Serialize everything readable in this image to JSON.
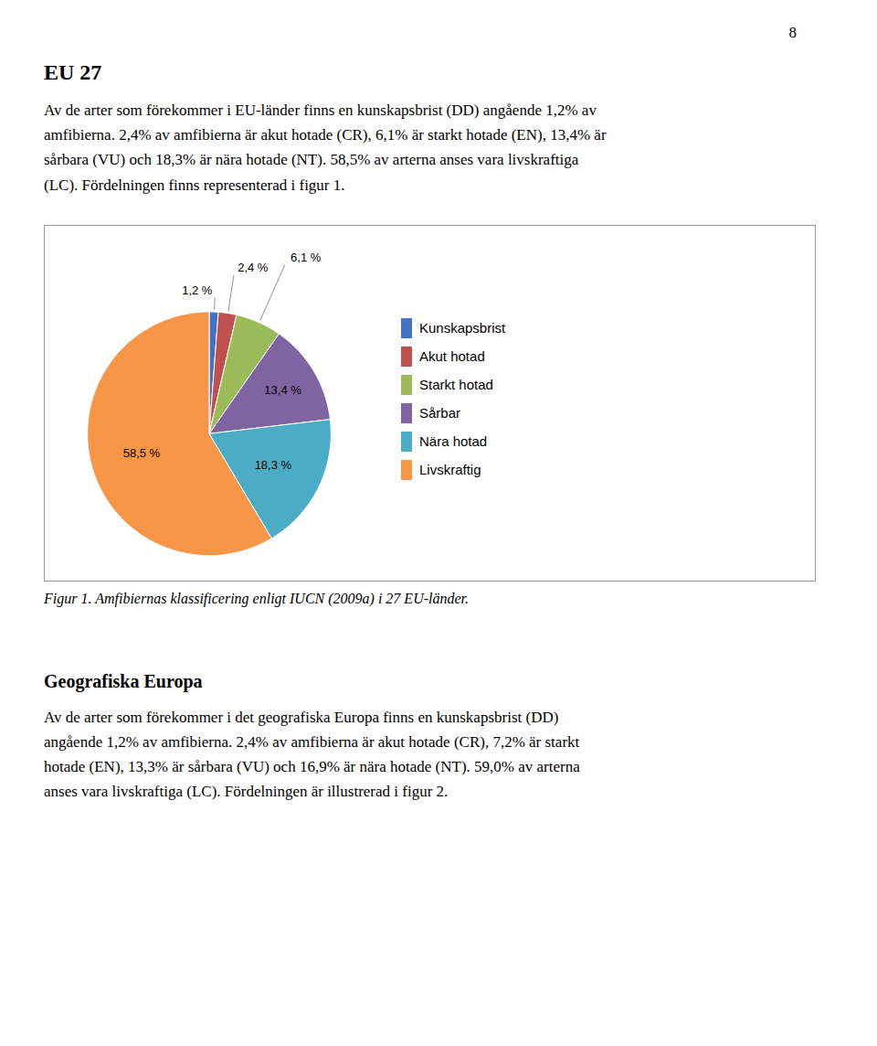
{
  "page_number": "8",
  "heading": "EU 27",
  "text": "Av de arter som förekommer i EU-länder finns en kunskapsbrist (DD) angående 1,2% av\namfibierna. 2,4% av amfibierna är akut hotade (CR), 6,1% är starkt hotade (EN), 13,4% är\nsårbara (VU) och 18,3% är nära hotade (NT). 58,5% av arterna anses vara livskraftiga\n(LC). Fördelningen finns representerad i figur 1.",
  "chart_data": {
    "type": "pie",
    "caption": "Figur 1. Amfibiernas klassificering enligt IUCN (2009a) i 27 EU-länder.",
    "categories": [
      "Kunskapsbrist",
      "Akut hotad",
      "Starkt hotad",
      "Sårbar",
      "Nära hotad",
      "Livskraftig"
    ],
    "values": [
      1.2,
      2.4,
      6.1,
      13.4,
      18.3,
      58.5
    ],
    "value_labels": [
      "1,2 %",
      "2,4 %",
      "6,1 %",
      "13,4 %",
      "18,3 %",
      "58,5 %"
    ],
    "colors": [
      "#4472C4",
      "#C0504D",
      "#9BBB59",
      "#8064A2",
      "#4BACC6",
      "#F79646"
    ],
    "data_labels": true,
    "legend": "right"
  },
  "sections": [
    {
      "heading": "Geografiska Europa",
      "text": "Av de arter som förekommer i det geografiska Europa finns en kunskapsbrist (DD)\nangående 1,2% av amfibierna. 2,4% av amfibierna är akut hotade (CR), 7,2% är starkt\nhotade (EN), 13,3% är sårbara (VU) och 16,9% är nära hotade (NT). 59,0% av arterna\nanses vara livskraftiga (LC). Fördelningen är illustrerad i figur 2."
    }
  ]
}
